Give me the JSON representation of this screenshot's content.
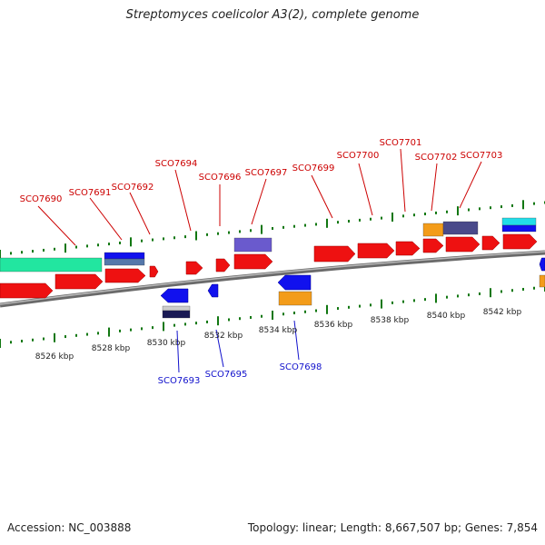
{
  "title": "Streptomyces coelicolor A3(2), complete genome",
  "footer": {
    "accession": "Accession: NC_003888",
    "summary": "Topology: linear; Length: 8,667,507 bp; Genes: 7,854"
  },
  "colors": {
    "forward_cds": "#ee1111",
    "reverse_cds": "#1111ee",
    "backbone": "#888888",
    "ruler_tick": "#117711",
    "forward_label": "#cc0000",
    "reverse_label": "#1111cc",
    "teal_feature": "#22e6a0",
    "orange_feature": "#f39c1a",
    "purple_feature": "#6a5acd",
    "cyan_feature": "#22dde8"
  },
  "ruler_labels": [
    "8526 kbp",
    "8528 kbp",
    "8530 kbp",
    "8532 kbp",
    "8534 kbp",
    "8536 kbp",
    "8538 kbp",
    "8540 kbp",
    "8542 kbp"
  ],
  "forward_genes": [
    "SCO7690",
    "SCO7691",
    "SCO7692",
    "SCO7694",
    "SCO7696",
    "SCO7697",
    "SCO7699",
    "SCO7700",
    "SCO7701",
    "SCO7702",
    "SCO7703"
  ],
  "reverse_genes": [
    "SCO7693",
    "SCO7695",
    "SCO7698"
  ]
}
